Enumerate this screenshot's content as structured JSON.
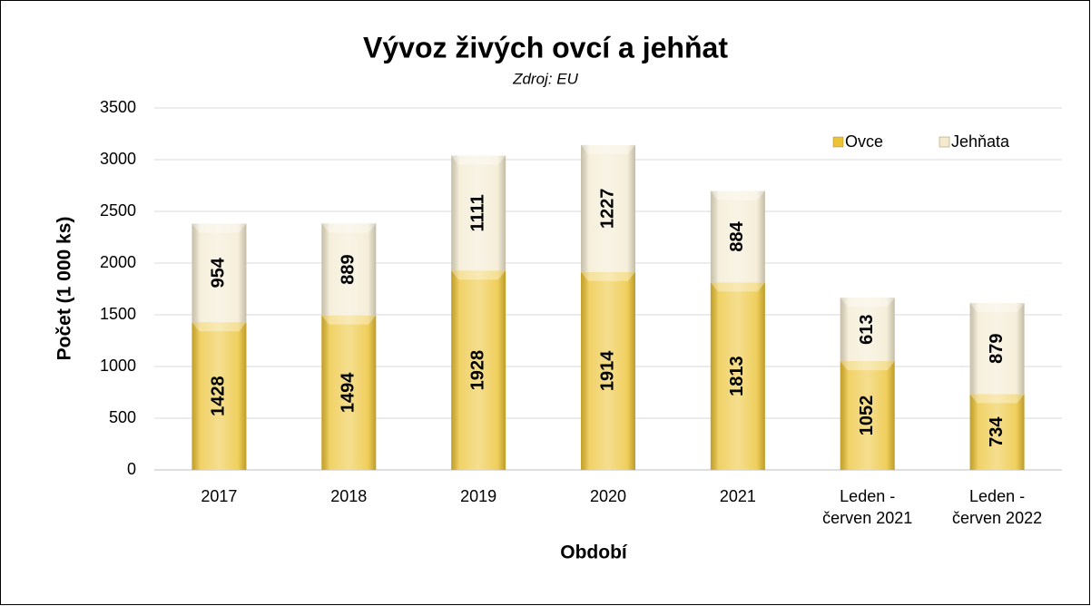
{
  "chart_data": {
    "type": "stacked_bar",
    "title": "Vývoz živých ovcí a jehňat",
    "subtitle": "Zdroj: EU",
    "y_label": "Počet (1 000 ks)",
    "x_label": "Období",
    "categories": [
      "2017",
      "2018",
      "2019",
      "2020",
      "2021",
      "Leden -\nčerven 2021",
      "Leden -\nčerven 2022"
    ],
    "series": [
      {
        "name": "Ovce",
        "color": "#ecc334",
        "values": [
          1428,
          1494,
          1928,
          1914,
          1813,
          1052,
          734
        ]
      },
      {
        "name": "Jehňata",
        "color": "#f3ead0",
        "values": [
          954,
          889,
          1111,
          1227,
          884,
          613,
          879
        ]
      }
    ],
    "ylim": [
      0,
      3500
    ],
    "yticks": [
      0,
      500,
      1000,
      1500,
      2000,
      2500,
      3000,
      3500
    ],
    "grid": true,
    "legend": "top-right"
  }
}
